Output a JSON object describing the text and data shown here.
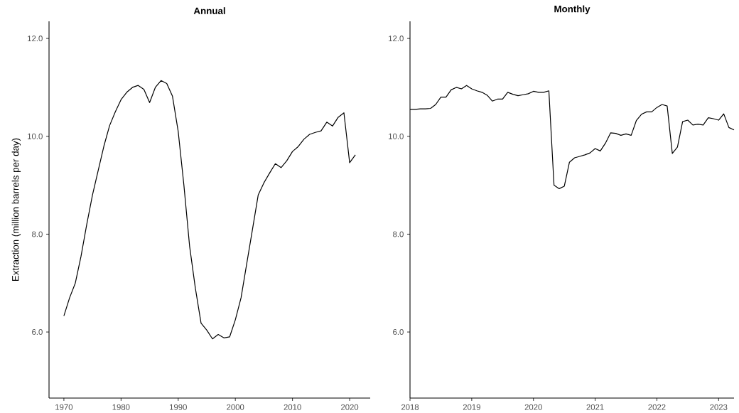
{
  "chart_data": [
    {
      "type": "line",
      "title": "Annual",
      "ylabel": "Extraction (million barrels per day)",
      "color": "#000000",
      "x": [
        1970,
        1971,
        1972,
        1973,
        1974,
        1975,
        1976,
        1977,
        1978,
        1979,
        1980,
        1981,
        1982,
        1983,
        1984,
        1985,
        1986,
        1987,
        1988,
        1989,
        1990,
        1991,
        1992,
        1993,
        1994,
        1995,
        1996,
        1997,
        1998,
        1999,
        2000,
        2001,
        2002,
        2003,
        2004,
        2005,
        2006,
        2007,
        2008,
        2009,
        2010,
        2011,
        2012,
        2013,
        2014,
        2015,
        2016,
        2017,
        2018,
        2019,
        2020,
        2021
      ],
      "values": [
        6.33,
        6.7,
        7.0,
        7.55,
        8.2,
        8.8,
        9.3,
        9.8,
        10.22,
        10.5,
        10.75,
        10.9,
        11.0,
        11.04,
        10.96,
        10.69,
        11.0,
        11.14,
        11.08,
        10.82,
        10.1,
        9.0,
        7.75,
        6.9,
        6.18,
        6.04,
        5.86,
        5.95,
        5.88,
        5.9,
        6.25,
        6.7,
        7.4,
        8.1,
        8.8,
        9.05,
        9.25,
        9.44,
        9.36,
        9.5,
        9.69,
        9.79,
        9.94,
        10.04,
        10.08,
        10.11,
        10.29,
        10.21,
        10.39,
        10.48,
        9.46,
        9.62
      ],
      "xlim": [
        1967.4,
        2023.6
      ],
      "xticks": [
        1970,
        1980,
        1990,
        2000,
        2010,
        2020
      ],
      "ylim": [
        4.65,
        12.35
      ],
      "yticks": [
        {
          "value": 6,
          "label": "6.0"
        },
        {
          "value": 8,
          "label": "8.0"
        },
        {
          "value": 10,
          "label": "10.0"
        },
        {
          "value": 12,
          "label": "12.0"
        }
      ]
    },
    {
      "type": "line",
      "title": "Monthly",
      "color": "#000000",
      "x": [
        "2018-01",
        "2018-02",
        "2018-03",
        "2018-04",
        "2018-05",
        "2018-06",
        "2018-07",
        "2018-08",
        "2018-09",
        "2018-10",
        "2018-11",
        "2018-12",
        "2019-01",
        "2019-02",
        "2019-03",
        "2019-04",
        "2019-05",
        "2019-06",
        "2019-07",
        "2019-08",
        "2019-09",
        "2019-10",
        "2019-11",
        "2019-12",
        "2020-01",
        "2020-02",
        "2020-03",
        "2020-04",
        "2020-05",
        "2020-06",
        "2020-07",
        "2020-08",
        "2020-09",
        "2020-10",
        "2020-11",
        "2020-12",
        "2021-01",
        "2021-02",
        "2021-03",
        "2021-04",
        "2021-05",
        "2021-06",
        "2021-07",
        "2021-08",
        "2021-09",
        "2021-10",
        "2021-11",
        "2021-12",
        "2022-01",
        "2022-02",
        "2022-03",
        "2022-04",
        "2022-05",
        "2022-06",
        "2022-07",
        "2022-08",
        "2022-09",
        "2022-10",
        "2022-11",
        "2022-12",
        "2023-01",
        "2023-02",
        "2023-03",
        "2023-04"
      ],
      "values": [
        10.55,
        10.55,
        10.56,
        10.56,
        10.57,
        10.65,
        10.8,
        10.8,
        10.95,
        11.0,
        10.97,
        11.04,
        10.97,
        10.93,
        10.9,
        10.84,
        10.72,
        10.76,
        10.76,
        10.9,
        10.86,
        10.83,
        10.85,
        10.87,
        10.92,
        10.9,
        10.9,
        10.93,
        9.0,
        8.93,
        8.98,
        9.47,
        9.56,
        9.59,
        9.62,
        9.66,
        9.75,
        9.7,
        9.86,
        10.07,
        10.06,
        10.02,
        10.05,
        10.02,
        10.32,
        10.45,
        10.5,
        10.5,
        10.59,
        10.65,
        10.62,
        9.65,
        9.78,
        10.3,
        10.33,
        10.23,
        10.25,
        10.23,
        10.38,
        10.36,
        10.33,
        10.46,
        10.18,
        10.13
      ],
      "xlim": [
        "2018-01",
        "2023-04"
      ],
      "xticks": [
        {
          "value": "2018-01",
          "label": "2018"
        },
        {
          "value": "2019-01",
          "label": "2019"
        },
        {
          "value": "2020-01",
          "label": "2020"
        },
        {
          "value": "2021-01",
          "label": "2021"
        },
        {
          "value": "2022-01",
          "label": "2022"
        },
        {
          "value": "2023-01",
          "label": "2023"
        }
      ],
      "ylim": [
        4.65,
        12.35
      ],
      "yticks": [
        {
          "value": 6,
          "label": "6.0"
        },
        {
          "value": 8,
          "label": "8.0"
        },
        {
          "value": 10,
          "label": "10.0"
        },
        {
          "value": 12,
          "label": "12.0"
        }
      ]
    }
  ]
}
